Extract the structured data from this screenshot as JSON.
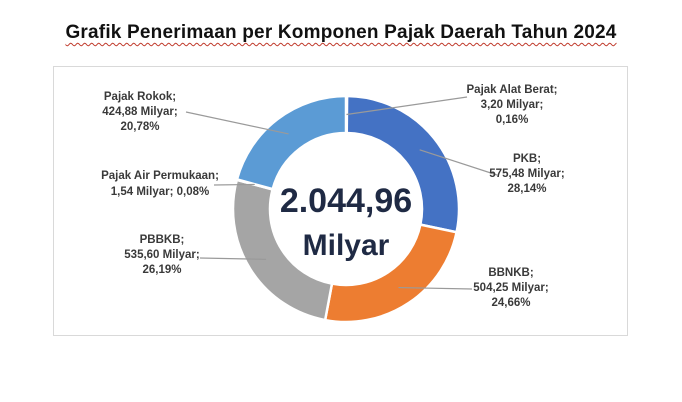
{
  "title": "Grafik Penerimaan per Komponen Pajak Daerah Tahun 2024",
  "chart_data": {
    "type": "pie",
    "variant": "donut",
    "title": "Grafik Penerimaan per Komponen Pajak Daerah Tahun 2024",
    "center_value": "2.044,96",
    "center_unit": "Milyar",
    "unit": "Milyar",
    "legend": "none",
    "slices": [
      {
        "name": "Pajak Alat Berat",
        "value": 3.2,
        "percent": 0.16,
        "value_label": "3,20",
        "percent_label": "0,16%",
        "color": "#4472c4"
      },
      {
        "name": "PKB",
        "value": 575.48,
        "percent": 28.14,
        "value_label": "575,48",
        "percent_label": "28,14%",
        "color": "#4472c4"
      },
      {
        "name": "BBNKB",
        "value": 504.25,
        "percent": 24.66,
        "value_label": "504,25",
        "percent_label": "24,66%",
        "color": "#ed7d31"
      },
      {
        "name": "PBBKB",
        "value": 535.6,
        "percent": 26.19,
        "value_label": "535,60",
        "percent_label": "26,19%",
        "color": "#a5a5a5"
      },
      {
        "name": "Pajak Air Permukaan",
        "value": 1.54,
        "percent": 0.08,
        "value_label": "1,54",
        "percent_label": "0,08%",
        "color": "#ffc000"
      },
      {
        "name": "Pajak Rokok",
        "value": 424.88,
        "percent": 20.78,
        "value_label": "424,88",
        "percent_label": "20,78%",
        "color": "#5b9bd5"
      }
    ],
    "labels": {
      "pajak_alat_berat": [
        "Pajak Alat Berat;",
        "3,20 Milyar;",
        "0,16%"
      ],
      "pkb": [
        "PKB;",
        "575,48 Milyar;",
        "28,14%"
      ],
      "bbnkb": [
        "BBNKB;",
        "504,25 Milyar;",
        "24,66%"
      ],
      "pbbkb": [
        "PBBKB;",
        "535,60 Milyar;",
        "26,19%"
      ],
      "pajak_air_permukaan": [
        "Pajak Air Permukaan;",
        "1,54 Milyar; 0,08%"
      ],
      "pajak_rokok": [
        "Pajak Rokok;",
        "424,88  Milyar;",
        "20,78%"
      ]
    }
  }
}
